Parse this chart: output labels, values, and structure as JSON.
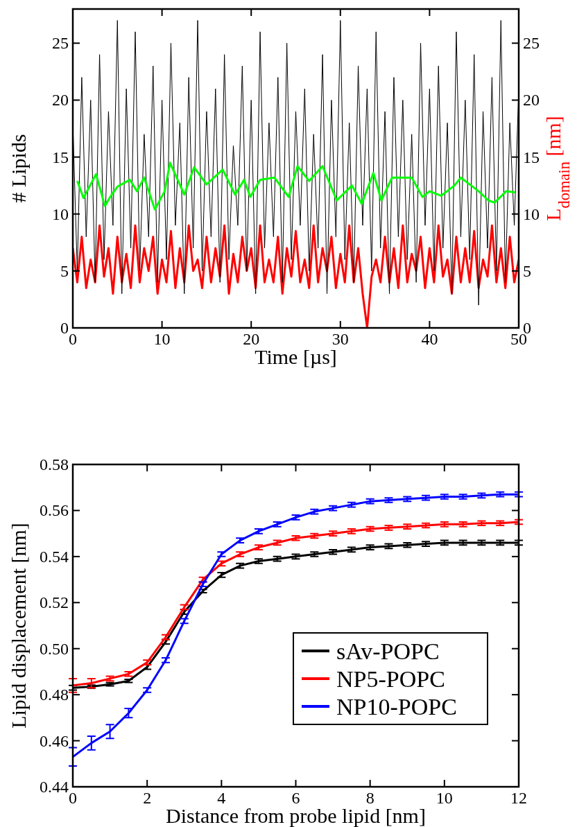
{
  "chart_data": [
    {
      "type": "line",
      "xlabel": "Time [µs]",
      "ylabel": "# Lipids",
      "y2label": "L$_{domain}$ [nm]",
      "xlim": [
        0,
        50
      ],
      "xticks": [
        0,
        10,
        20,
        30,
        40,
        50
      ],
      "ylim": [
        0,
        28
      ],
      "yticks": [
        0,
        5,
        10,
        15,
        20,
        25
      ],
      "y2lim": [
        0,
        28
      ],
      "y2ticks": [
        0,
        5,
        10,
        15,
        20,
        25
      ],
      "grid": false,
      "legend": false,
      "x": [
        0,
        0.5,
        1,
        1.5,
        2,
        2.5,
        3,
        3.5,
        4,
        4.5,
        5,
        5.5,
        6,
        6.5,
        7,
        7.5,
        8,
        8.5,
        9,
        9.5,
        10,
        10.5,
        11,
        11.5,
        12,
        12.5,
        13,
        13.5,
        14,
        14.5,
        15,
        15.5,
        16,
        16.5,
        17,
        17.5,
        18,
        18.5,
        19,
        19.5,
        20,
        20.5,
        21,
        21.5,
        22,
        22.5,
        23,
        23.5,
        24,
        24.5,
        25,
        25.5,
        26,
        26.5,
        27,
        27.5,
        28,
        28.5,
        29,
        29.5,
        30,
        30.5,
        31,
        31.5,
        32,
        32.5,
        33,
        33.5,
        34,
        34.5,
        35,
        35.5,
        36,
        36.5,
        37,
        37.5,
        38,
        38.5,
        39,
        39.5,
        40,
        40.5,
        41,
        41.5,
        42,
        42.5,
        43,
        43.5,
        44,
        44.5,
        45,
        45.5,
        46,
        46.5,
        47,
        47.5,
        48,
        48.5,
        49,
        49.5,
        50
      ],
      "series": [
        {
          "color": "#ff0000",
          "axis": "y2",
          "values": [
            7,
            4,
            8,
            3.5,
            6,
            4,
            9,
            4.5,
            7,
            3,
            8,
            4,
            6.5,
            3.5,
            9,
            4,
            7,
            5,
            8,
            3,
            6,
            4,
            8.5,
            3.5,
            7,
            4,
            9,
            5,
            6,
            3.5,
            8,
            4,
            7,
            4.5,
            9,
            3,
            6.5,
            4,
            8,
            5,
            7,
            3.5,
            9,
            4,
            6,
            4,
            8,
            3,
            7,
            4.5,
            8.5,
            4,
            6,
            3.5,
            9,
            4,
            7,
            5,
            8,
            3.5,
            6.5,
            4,
            9,
            4,
            7,
            3,
            0,
            4.5,
            6,
            4,
            8,
            4,
            7,
            3.5,
            9,
            4,
            6.5,
            5,
            8,
            3.5,
            7,
            4,
            9,
            4.5,
            6,
            3,
            8,
            4,
            7,
            4,
            8.5,
            3.5,
            6,
            4.5,
            9,
            4,
            7,
            3.5,
            8,
            4,
            6
          ]
        },
        {
          "color": "#000000",
          "values": [
            18,
            5,
            22,
            8,
            20,
            4,
            24,
            6,
            19,
            9,
            27,
            3,
            21,
            7,
            26,
            5,
            17,
            8,
            23,
            4,
            20,
            6,
            25,
            9,
            18,
            3,
            22,
            7,
            27,
            5,
            19,
            8,
            21,
            4,
            24,
            6,
            16,
            9,
            23,
            5,
            20,
            3,
            26,
            7,
            18,
            8,
            22,
            4,
            25,
            6,
            19,
            9,
            21,
            5,
            17,
            7,
            24,
            3,
            20,
            8,
            27,
            6,
            18,
            4,
            23,
            9,
            21,
            5,
            26,
            7,
            19,
            3,
            22,
            8,
            20,
            6,
            17,
            4,
            25,
            9,
            21,
            5,
            23,
            7,
            18,
            3,
            26,
            8,
            20,
            6,
            24,
            2,
            19,
            7,
            22,
            5,
            27,
            4,
            18,
            9,
            21
          ]
        },
        {
          "color": "#00ff00",
          "x": [
            0.5,
            1.2,
            2.6,
            3.6,
            4.2,
            5,
            6.4,
            7.2,
            8,
            9.2,
            10.3,
            10.9,
            12.5,
            13.6,
            15,
            16.8,
            18.2,
            19.2,
            19.9,
            21,
            22.6,
            24.2,
            25.2,
            26.5,
            28,
            29.6,
            31.3,
            32.4,
            33.7,
            34.6,
            35.8,
            38,
            39.2,
            40,
            41.3,
            42.8,
            43.5,
            45.5,
            46.6,
            47.3,
            48.6,
            49.6
          ],
          "values": [
            12.9,
            11.4,
            13.5,
            10.7,
            11.5,
            12.4,
            13.0,
            12.0,
            13.2,
            10.4,
            12.0,
            14.5,
            11.7,
            14.1,
            12.6,
            13.9,
            11.7,
            13.0,
            11.5,
            13.0,
            13.2,
            11.5,
            14.2,
            12.9,
            14.2,
            11.2,
            12.5,
            10.9,
            13.6,
            11.2,
            13.2,
            13.2,
            11.5,
            12.0,
            11.6,
            12.5,
            13.2,
            12.0,
            11.2,
            11.0,
            12.0,
            11.9
          ]
        }
      ]
    },
    {
      "type": "line",
      "xlabel": "Distance from probe lipid [nm]",
      "ylabel": "Lipid displacement [nm]",
      "xlim": [
        0,
        12
      ],
      "xticks": [
        0,
        2,
        4,
        6,
        8,
        10,
        12
      ],
      "ylim": [
        0.44,
        0.58
      ],
      "yticks": [
        {
          "value": 0.44,
          "label": "0.44"
        },
        {
          "value": 0.46,
          "label": "0.46"
        },
        {
          "value": 0.48,
          "label": "0.48"
        },
        {
          "value": 0.5,
          "label": "0.50"
        },
        {
          "value": 0.52,
          "label": "0.52"
        },
        {
          "value": 0.54,
          "label": "0.54"
        },
        {
          "value": 0.56,
          "label": "0.56"
        },
        {
          "value": 0.58,
          "label": "0.58"
        }
      ],
      "grid": false,
      "legend": "bottom right",
      "line_style": "solid",
      "marker": "none",
      "x": [
        0,
        0.5,
        1,
        1.5,
        2,
        2.5,
        3,
        3.5,
        4,
        4.5,
        5,
        5.5,
        6,
        6.5,
        7,
        7.5,
        8,
        8.5,
        9,
        9.5,
        10,
        10.5,
        11,
        11.5,
        12
      ],
      "series": [
        {
          "name": "sAv-POPC",
          "color": "#000000",
          "values": [
            0.483,
            0.4835,
            0.4845,
            0.486,
            0.492,
            0.503,
            0.516,
            0.525,
            0.532,
            0.536,
            0.538,
            0.539,
            0.54,
            0.541,
            0.542,
            0.543,
            0.544,
            0.5445,
            0.545,
            0.5455,
            0.546,
            0.546,
            0.546,
            0.546,
            0.546
          ],
          "errors": [
            0.001,
            0.0007,
            0.0007,
            0.0007,
            0.001,
            0.001,
            0.001,
            0.0007,
            0.001,
            0.001,
            0.001,
            0.001,
            0.001,
            0.001,
            0.001,
            0.001,
            0.001,
            0.001,
            0.001,
            0.001,
            0.001,
            0.001,
            0.001,
            0.001,
            0.001
          ]
        },
        {
          "name": "NP5-POPC",
          "color": "#ff0000",
          "values": [
            0.484,
            0.485,
            0.487,
            0.489,
            0.494,
            0.505,
            0.518,
            0.53,
            0.537,
            0.541,
            0.544,
            0.546,
            0.548,
            0.549,
            0.55,
            0.551,
            0.552,
            0.5525,
            0.553,
            0.5535,
            0.554,
            0.554,
            0.5545,
            0.5545,
            0.555
          ],
          "errors": [
            0.003,
            0.002,
            0.001,
            0.001,
            0.001,
            0.001,
            0.001,
            0.001,
            0.001,
            0.001,
            0.001,
            0.001,
            0.001,
            0.001,
            0.001,
            0.001,
            0.001,
            0.001,
            0.001,
            0.001,
            0.001,
            0.001,
            0.001,
            0.001,
            0.001
          ]
        },
        {
          "name": "NP10-POPC",
          "color": "#0000ff",
          "values": [
            0.453,
            0.459,
            0.464,
            0.472,
            0.482,
            0.495,
            0.512,
            0.528,
            0.541,
            0.547,
            0.551,
            0.554,
            0.557,
            0.5595,
            0.561,
            0.5625,
            0.564,
            0.5645,
            0.565,
            0.5655,
            0.566,
            0.566,
            0.5665,
            0.567,
            0.567
          ],
          "errors": [
            0.004,
            0.003,
            0.003,
            0.002,
            0.001,
            0.001,
            0.001,
            0.001,
            0.001,
            0.001,
            0.001,
            0.001,
            0.001,
            0.001,
            0.001,
            0.001,
            0.001,
            0.001,
            0.001,
            0.001,
            0.001,
            0.001,
            0.001,
            0.001,
            0.001
          ]
        }
      ]
    }
  ]
}
